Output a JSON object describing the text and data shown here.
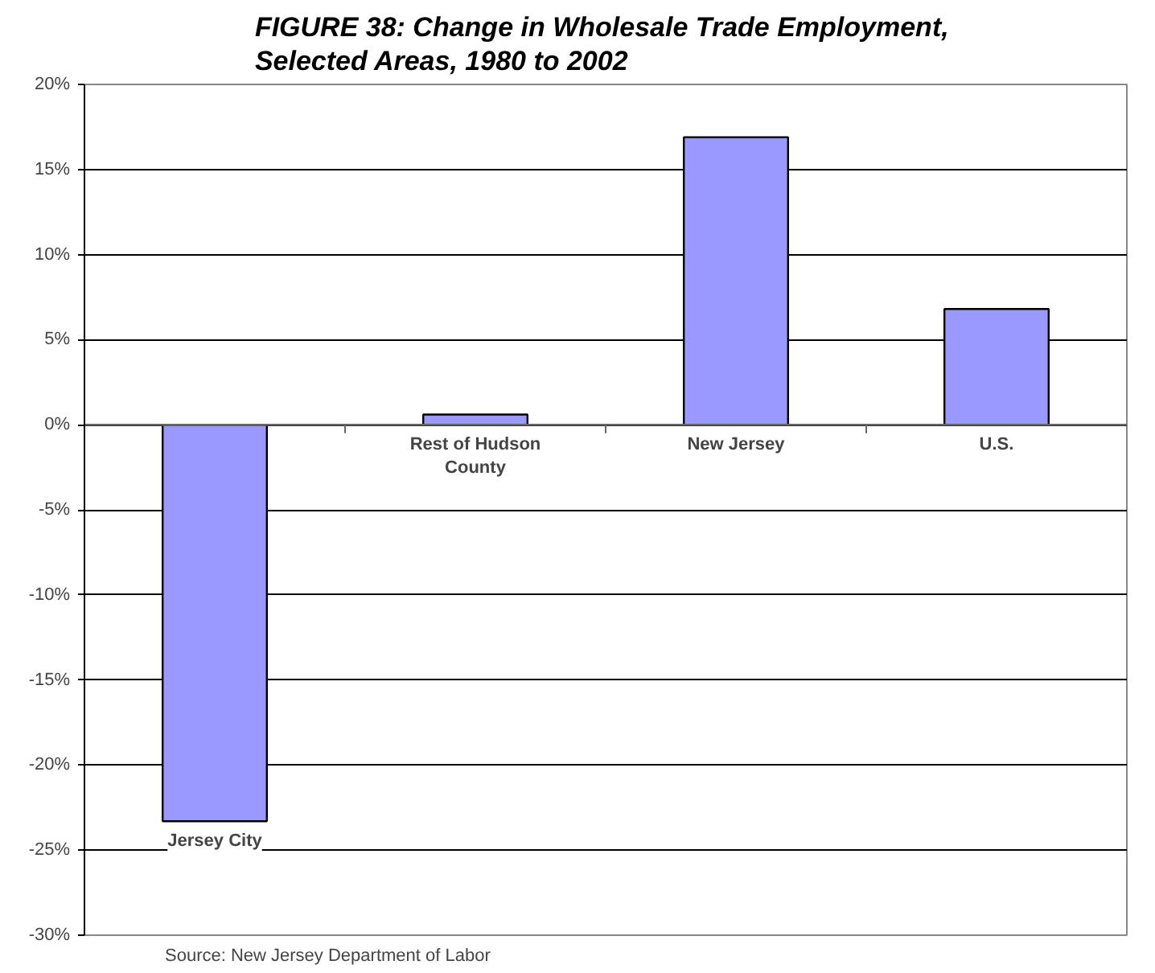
{
  "chart_data": {
    "type": "bar",
    "title": "FIGURE 38:  Change in Wholesale Trade Employment,\nSelected Areas, 1980 to 2002",
    "categories": [
      "Jersey City",
      "Rest of Hudson County",
      "New Jersey",
      "U.S."
    ],
    "values": [
      -23.3,
      0.6,
      16.9,
      6.8
    ],
    "color": "#9999ff",
    "ylim": [
      -30,
      20
    ],
    "yticks": [
      {
        "value": -30,
        "label": "-30%"
      },
      {
        "value": -25,
        "label": "-25%"
      },
      {
        "value": -20,
        "label": "-20%"
      },
      {
        "value": -15,
        "label": "-15%"
      },
      {
        "value": -10,
        "label": "-10%"
      },
      {
        "value": -5,
        "label": "-5%"
      },
      {
        "value": 0,
        "label": "0%"
      },
      {
        "value": 5,
        "label": "5%"
      },
      {
        "value": 10,
        "label": "10%"
      },
      {
        "value": 15,
        "label": "15%"
      },
      {
        "value": 20,
        "label": "20%"
      }
    ],
    "grid": "y",
    "annotations": [
      "Source: New Jersey Department of Labor"
    ]
  }
}
